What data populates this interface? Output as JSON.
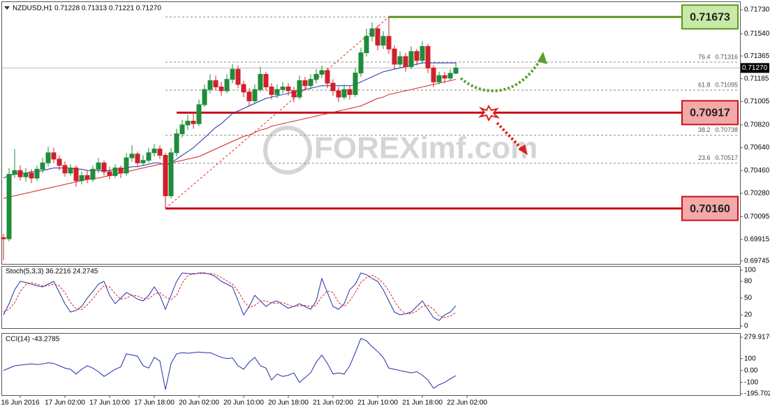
{
  "chart_data": {
    "type": "candlestick",
    "header": "NZDUSD,H1  0.71228 0.71313 0.71221 0.71270",
    "watermark": "FOREXimf.com",
    "categories": [
      null,
      null,
      null,
      "16 Jun 2016",
      null,
      null,
      null,
      null,
      null,
      null,
      null,
      "17 Jun 02:00",
      null,
      null,
      null,
      null,
      null,
      null,
      null,
      "17 Jun 10:00",
      null,
      null,
      null,
      null,
      null,
      null,
      null,
      "17 Jun 18:00",
      null,
      null,
      null,
      null,
      null,
      null,
      null,
      "20 Jun 02:00",
      null,
      null,
      null,
      null,
      null,
      null,
      null,
      "20 Jun 10:00",
      null,
      null,
      null,
      null,
      null,
      null,
      null,
      "20 Jun 18:00",
      null,
      null,
      null,
      null,
      null,
      null,
      null,
      "21 Jun 02:00",
      null,
      null,
      null,
      null,
      null,
      null,
      null,
      "21 Jun 10:00",
      null,
      null,
      null,
      null,
      null,
      null,
      null,
      "21 Jun 18:00",
      null,
      null,
      null,
      null,
      null,
      null,
      null,
      "22 Jun 02:00"
    ],
    "ohlc": [
      [
        0.6993,
        0.6996,
        0.6975,
        0.6992
      ],
      [
        0.6992,
        0.7048,
        0.699,
        0.7043
      ],
      [
        0.7043,
        0.7063,
        0.704,
        0.7046
      ],
      [
        0.7046,
        0.705,
        0.7038,
        0.7041
      ],
      [
        0.7041,
        0.7048,
        0.7037,
        0.7044
      ],
      [
        0.7044,
        0.7047,
        0.7036,
        0.704
      ],
      [
        0.704,
        0.705,
        0.7038,
        0.7047
      ],
      [
        0.7047,
        0.7056,
        0.7044,
        0.7052
      ],
      [
        0.7052,
        0.7065,
        0.7049,
        0.706
      ],
      [
        0.706,
        0.7064,
        0.7052,
        0.7055
      ],
      [
        0.7055,
        0.7058,
        0.7046,
        0.705
      ],
      [
        0.705,
        0.7053,
        0.7041,
        0.7044
      ],
      [
        0.7044,
        0.7051,
        0.7042,
        0.7048
      ],
      [
        0.7048,
        0.705,
        0.7033,
        0.7038
      ],
      [
        0.7038,
        0.7045,
        0.7035,
        0.7042
      ],
      [
        0.7042,
        0.7046,
        0.7036,
        0.7039
      ],
      [
        0.7039,
        0.705,
        0.7037,
        0.7047
      ],
      [
        0.7047,
        0.7056,
        0.7044,
        0.7052
      ],
      [
        0.7052,
        0.7054,
        0.7042,
        0.7045
      ],
      [
        0.7045,
        0.7049,
        0.7039,
        0.7042
      ],
      [
        0.7042,
        0.7051,
        0.704,
        0.7048
      ],
      [
        0.7048,
        0.705,
        0.704,
        0.7044
      ],
      [
        0.7044,
        0.706,
        0.7042,
        0.7056
      ],
      [
        0.7056,
        0.7066,
        0.7053,
        0.7059
      ],
      [
        0.7059,
        0.7061,
        0.7049,
        0.7052
      ],
      [
        0.7052,
        0.7058,
        0.705,
        0.7054
      ],
      [
        0.7054,
        0.7064,
        0.7052,
        0.706
      ],
      [
        0.706,
        0.7067,
        0.7057,
        0.7063
      ],
      [
        0.7063,
        0.7066,
        0.7055,
        0.7058
      ],
      [
        0.7058,
        0.706,
        0.7016,
        0.7026
      ],
      [
        0.7026,
        0.7064,
        0.7024,
        0.706
      ],
      [
        0.706,
        0.7079,
        0.7057,
        0.7075
      ],
      [
        0.7075,
        0.7086,
        0.7072,
        0.7082
      ],
      [
        0.7082,
        0.709,
        0.7078,
        0.7085
      ],
      [
        0.7085,
        0.7092,
        0.7079,
        0.7083
      ],
      [
        0.7083,
        0.7102,
        0.7081,
        0.7098
      ],
      [
        0.7098,
        0.7114,
        0.7096,
        0.711
      ],
      [
        0.711,
        0.7122,
        0.7107,
        0.7117
      ],
      [
        0.7117,
        0.7121,
        0.7109,
        0.7112
      ],
      [
        0.7112,
        0.7116,
        0.7105,
        0.7109
      ],
      [
        0.7109,
        0.7122,
        0.7107,
        0.7118
      ],
      [
        0.7118,
        0.713,
        0.7115,
        0.7126
      ],
      [
        0.7126,
        0.7129,
        0.7111,
        0.7114
      ],
      [
        0.7114,
        0.7117,
        0.7104,
        0.7108
      ],
      [
        0.7108,
        0.7111,
        0.7097,
        0.7101
      ],
      [
        0.7101,
        0.7114,
        0.7099,
        0.711
      ],
      [
        0.711,
        0.7128,
        0.7108,
        0.7122
      ],
      [
        0.7122,
        0.7124,
        0.7109,
        0.7112
      ],
      [
        0.7112,
        0.7115,
        0.7102,
        0.7106
      ],
      [
        0.7106,
        0.7114,
        0.7103,
        0.711
      ],
      [
        0.711,
        0.7116,
        0.7107,
        0.7112
      ],
      [
        0.7112,
        0.7115,
        0.7105,
        0.7109
      ],
      [
        0.7109,
        0.7112,
        0.71,
        0.7104
      ],
      [
        0.7104,
        0.7121,
        0.7102,
        0.7117
      ],
      [
        0.7117,
        0.712,
        0.7109,
        0.7113
      ],
      [
        0.7113,
        0.7122,
        0.711,
        0.7118
      ],
      [
        0.7118,
        0.7126,
        0.7115,
        0.7122
      ],
      [
        0.7122,
        0.7129,
        0.7119,
        0.7125
      ],
      [
        0.7125,
        0.7127,
        0.7111,
        0.7115
      ],
      [
        0.7115,
        0.7118,
        0.7105,
        0.7109
      ],
      [
        0.7109,
        0.7112,
        0.71,
        0.7104
      ],
      [
        0.7104,
        0.7114,
        0.7102,
        0.711
      ],
      [
        0.711,
        0.7113,
        0.7102,
        0.7106
      ],
      [
        0.7106,
        0.7127,
        0.7104,
        0.7123
      ],
      [
        0.7123,
        0.7143,
        0.712,
        0.7139
      ],
      [
        0.7139,
        0.7158,
        0.7136,
        0.7152
      ],
      [
        0.7152,
        0.7163,
        0.7148,
        0.7158
      ],
      [
        0.7158,
        0.7161,
        0.7141,
        0.7145
      ],
      [
        0.7145,
        0.7156,
        0.7142,
        0.7152
      ],
      [
        0.7152,
        0.71673,
        0.7138,
        0.7142
      ],
      [
        0.7142,
        0.7145,
        0.7126,
        0.713
      ],
      [
        0.713,
        0.714,
        0.7127,
        0.7136
      ],
      [
        0.7136,
        0.7139,
        0.7124,
        0.7128
      ],
      [
        0.7128,
        0.7144,
        0.7126,
        0.714
      ],
      [
        0.714,
        0.7142,
        0.7129,
        0.7133
      ],
      [
        0.7133,
        0.7148,
        0.7131,
        0.7144
      ],
      [
        0.7144,
        0.7146,
        0.7123,
        0.7127
      ],
      [
        0.7127,
        0.7129,
        0.7112,
        0.7116
      ],
      [
        0.7116,
        0.7124,
        0.7114,
        0.7121
      ],
      [
        0.7121,
        0.7124,
        0.7115,
        0.7119
      ],
      [
        0.7119,
        0.7126,
        0.7117,
        0.71228
      ],
      [
        0.71228,
        0.71313,
        0.71221,
        0.7127
      ],
      null,
      null
    ],
    "up_color": "#1e8c3a",
    "down_color": "#d0202a",
    "ylim": [
      0.69722,
      0.71796
    ],
    "yticks": [
      {
        "value": 0.7173,
        "label": "0.71730"
      },
      {
        "value": 0.7154,
        "label": "0.71540"
      },
      0.71365,
      0.71185,
      0.71005,
      {
        "value": 0.7082,
        "label": "0.70820"
      },
      {
        "value": 0.7064,
        "label": "0.70640"
      },
      {
        "value": 0.7046,
        "label": "0.70460"
      },
      {
        "value": 0.7028,
        "label": "0.70280"
      },
      0.70095,
      0.69915,
      0.69745
    ],
    "current": {
      "value": 0.7127,
      "label": "0.71270"
    },
    "moving_averages": [
      {
        "color": "#1f2fa8",
        "values": [
          0.704,
          0.7042,
          0.7043,
          0.7044,
          0.7044,
          0.7045,
          0.7045,
          0.7046,
          0.7047,
          0.7048,
          0.7048,
          0.7048,
          0.7048,
          0.7047,
          0.7047,
          0.7046,
          0.7046,
          0.7046,
          0.7046,
          0.7046,
          0.7047,
          0.7047,
          0.7048,
          0.7049,
          0.7049,
          0.705,
          0.7051,
          0.7052,
          0.7052,
          0.705,
          0.7052,
          0.7055,
          0.7058,
          0.7061,
          0.7064,
          0.7068,
          0.7072,
          0.7076,
          0.708,
          0.7083,
          0.7087,
          0.7091,
          0.7093,
          0.7095,
          0.7097,
          0.7099,
          0.7101,
          0.7103,
          0.7104,
          0.7105,
          0.7106,
          0.7107,
          0.7108,
          0.7109,
          0.711,
          0.7111,
          0.7112,
          0.7113,
          0.7113,
          0.7113,
          0.7113,
          0.7113,
          0.7113,
          0.7114,
          0.7116,
          0.7118,
          0.712,
          0.7122,
          0.7124,
          0.7125,
          0.7126,
          0.7127,
          0.7128,
          0.7129,
          0.713,
          0.7131,
          0.7131,
          0.7131,
          0.7131,
          0.7131,
          0.7131,
          0.7131,
          null,
          null
        ]
      },
      {
        "color": "#d62020",
        "values": [
          0.7024,
          0.7025,
          0.7026,
          0.7027,
          0.7028,
          0.7029,
          0.703,
          0.7031,
          0.7032,
          0.7033,
          0.7034,
          0.7035,
          0.7036,
          0.7037,
          0.7038,
          0.7039,
          0.704,
          0.704,
          0.7041,
          0.7042,
          0.7043,
          0.7044,
          0.7045,
          0.7046,
          0.7047,
          0.7048,
          0.7049,
          0.705,
          0.7051,
          0.7051,
          0.7052,
          0.7053,
          0.7054,
          0.7055,
          0.7056,
          0.7057,
          0.7059,
          0.7061,
          0.7063,
          0.7065,
          0.7067,
          0.7069,
          0.7071,
          0.7073,
          0.7074,
          0.7076,
          0.7078,
          0.7079,
          0.7081,
          0.7082,
          0.7083,
          0.7084,
          0.7085,
          0.7086,
          0.7087,
          0.7088,
          0.7089,
          0.709,
          0.7091,
          0.7092,
          0.7093,
          0.7094,
          0.7095,
          0.7096,
          0.7097,
          0.7099,
          0.7101,
          0.7103,
          0.7104,
          0.7106,
          0.7107,
          0.7108,
          0.7109,
          0.711,
          0.7111,
          0.7112,
          0.7113,
          0.7114,
          0.7115,
          0.7116,
          0.7117,
          0.7118,
          null,
          null
        ]
      }
    ],
    "levels": {
      "values": [
        0.71673,
        0.70917,
        0.7016
      ],
      "value_labels": [
        "0.71673",
        "0.70917",
        "0.70160"
      ],
      "colors": [
        "#5a9a1e",
        "#c8101a",
        "#c8101a"
      ],
      "fills": [
        "#c9eaa6",
        "#f4a8a8",
        "#f4a8a8"
      ]
    },
    "fib": {
      "levels": [
        76.4,
        61.8,
        38.2,
        23.6
      ],
      "prices": [
        0.71316,
        0.71095,
        0.70738,
        0.70517
      ]
    },
    "stoch": {
      "title": "Stoch(5,3,3) 36.2216 24.2745",
      "ylim": [
        -3.75,
        107.5
      ],
      "yticks": [
        0,
        20,
        50,
        80,
        100
      ],
      "main": {
        "color": "#1f2fa8",
        "values": [
          20,
          40,
          65,
          80,
          78,
          75,
          72,
          70,
          75,
          80,
          60,
          40,
          25,
          28,
          35,
          50,
          62,
          75,
          80,
          55,
          40,
          50,
          60,
          55,
          48,
          45,
          55,
          70,
          55,
          30,
          55,
          80,
          95,
          94,
          93,
          95,
          95,
          93,
          88,
          80,
          75,
          70,
          45,
          20,
          35,
          55,
          45,
          35,
          42,
          45,
          38,
          32,
          35,
          40,
          35,
          30,
          45,
          85,
          60,
          35,
          30,
          40,
          65,
          75,
          95,
          92,
          85,
          80,
          65,
          45,
          25,
          20,
          22,
          25,
          35,
          45,
          30,
          15,
          10,
          20,
          25,
          36.2216,
          null,
          null
        ]
      },
      "signal": {
        "color": "#e02020",
        "values": [
          25,
          30,
          42,
          62,
          74,
          78,
          75,
          72,
          72,
          75,
          72,
          60,
          42,
          31,
          29,
          38,
          49,
          62,
          72,
          70,
          58,
          48,
          50,
          55,
          54,
          49,
          49,
          57,
          60,
          52,
          47,
          55,
          77,
          90,
          94,
          94,
          94,
          94,
          92,
          87,
          81,
          75,
          63,
          45,
          33,
          37,
          45,
          45,
          41,
          41,
          42,
          38,
          35,
          36,
          37,
          35,
          37,
          53,
          63,
          60,
          42,
          35,
          45,
          60,
          78,
          87,
          91,
          86,
          77,
          63,
          45,
          30,
          22,
          22,
          27,
          35,
          37,
          30,
          18,
          15,
          18,
          24.2745,
          null,
          null
        ]
      }
    },
    "cci": {
      "title": "CCI(14) -43.2785",
      "ylim": [
        -207.4,
        309.3
      ],
      "yticks": [
        -195.7021,
        -100,
        {
          "value": 0,
          "label": "0.00"
        },
        100,
        279.9176
      ],
      "line": {
        "color": "#1f2fa8",
        "values": [
          0,
          20,
          40,
          45,
          50,
          55,
          50,
          55,
          65,
          60,
          40,
          20,
          10,
          -30,
          10,
          40,
          20,
          -10,
          -50,
          -20,
          10,
          30,
          140,
          130,
          120,
          40,
          20,
          110,
          80,
          -160,
          60,
          140,
          150,
          145,
          150,
          155,
          150,
          150,
          130,
          110,
          100,
          105,
          40,
          10,
          70,
          110,
          40,
          20,
          -80,
          -30,
          -50,
          -40,
          -20,
          -100,
          -60,
          -20,
          70,
          130,
          60,
          -30,
          -20,
          -30,
          40,
          150,
          270,
          250,
          200,
          160,
          110,
          20,
          10,
          0,
          -10,
          -20,
          -10,
          -40,
          -80,
          -150,
          -120,
          -100,
          -70,
          -43.2785,
          null,
          null
        ]
      }
    }
  }
}
